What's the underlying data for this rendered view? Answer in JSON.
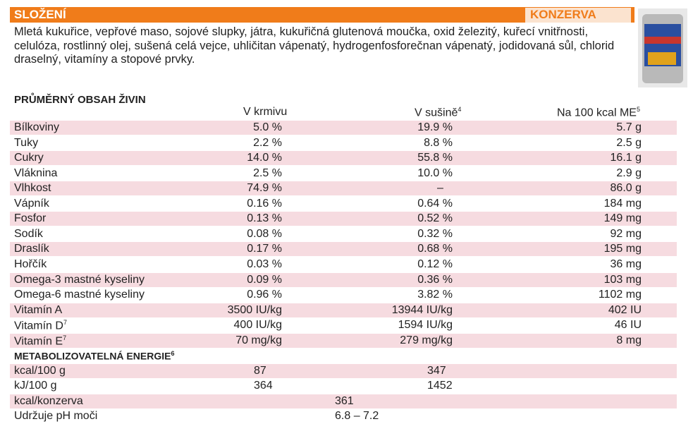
{
  "header": {
    "title": "SLOŽENÍ",
    "badge": "KONZERVA"
  },
  "ingredients": "Mletá kukuřice, vepřové maso, sojové slupky, játra, kukuřičná glutenová moučka, oxid železitý, kuřecí vnitřnosti, celulóza, rostlinný olej, sušená celá vejce, uhličitan vápenatý, hydrogenfosforečnan vápenatý, jodidovaná sůl, chlorid draselný, vitamíny a stopové prvky.",
  "nutrients": {
    "title": "PRŮMĚRNÝ OBSAH ŽIVIN",
    "columns": [
      {
        "label": "V krmivu"
      },
      {
        "label": "V sušině",
        "note": "4"
      },
      {
        "label": "Na 100 kcal ME",
        "note": "5"
      }
    ],
    "rows": [
      {
        "label": "Bílkoviny",
        "values": [
          "5.0 %",
          "19.9 %",
          "5.7 g"
        ]
      },
      {
        "label": "Tuky",
        "values": [
          "2.2 %",
          "8.8 %",
          "2.5 g"
        ]
      },
      {
        "label": "Cukry",
        "values": [
          "14.0 %",
          "55.8 %",
          "16.1 g"
        ]
      },
      {
        "label": "Vláknina",
        "values": [
          "2.5 %",
          "10.0 %",
          "2.9 g"
        ]
      },
      {
        "label": "Vlhkost",
        "values": [
          "74.9 %",
          "–",
          "86.0 g"
        ]
      },
      {
        "label": "Vápník",
        "values": [
          "0.16 %",
          "0.64 %",
          "184 mg"
        ]
      },
      {
        "label": "Fosfor",
        "values": [
          "0.13 %",
          "0.52 %",
          "149 mg"
        ]
      },
      {
        "label": "Sodík",
        "values": [
          "0.08 %",
          "0.32 %",
          "92 mg"
        ]
      },
      {
        "label": "Draslík",
        "values": [
          "0.17 %",
          "0.68 %",
          "195 mg"
        ]
      },
      {
        "label": "Hořčík",
        "values": [
          "0.03 %",
          "0.12 %",
          "36 mg"
        ]
      },
      {
        "label": "Omega-3 mastné kyseliny",
        "values": [
          "0.09 %",
          "0.36 %",
          "103 mg"
        ]
      },
      {
        "label": "Omega-6 mastné kyseliny",
        "values": [
          "0.96 %",
          "3.82 %",
          "1102 mg"
        ]
      },
      {
        "label": "Vitamín A",
        "values": [
          "3500 IU/kg",
          "13944 IU/kg",
          "402 IU"
        ]
      },
      {
        "label": "Vitamín D",
        "note": "7",
        "values": [
          "400 IU/kg",
          "1594 IU/kg",
          "46 IU"
        ]
      },
      {
        "label": "Vitamín E",
        "note": "7",
        "values": [
          "70 mg/kg",
          "279 mg/kg",
          "8 mg"
        ]
      }
    ]
  },
  "energy": {
    "title": "METABOLIZOVATELNÁ ENERGIE",
    "note": "6",
    "rows": [
      {
        "label": "kcal/100 g",
        "values": [
          "87",
          "347"
        ]
      },
      {
        "label": "kJ/100 g",
        "values": [
          "364",
          "1452"
        ]
      },
      {
        "label": "kcal/konzerva",
        "value": "361"
      },
      {
        "label": "Udržuje pH moči",
        "value": "6.8 – 7.2"
      }
    ]
  }
}
